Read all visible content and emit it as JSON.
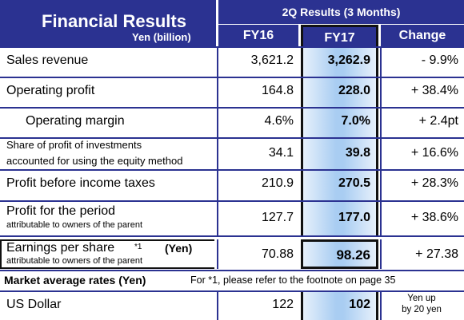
{
  "header": {
    "title": "Financial Results",
    "unit": "Yen (billion)",
    "group": "2Q Results (3 Months)",
    "col_fy16": "FY16",
    "col_fy17": "FY17",
    "col_change": "Change"
  },
  "rows": [
    {
      "label": "Sales revenue",
      "fy16": "3,621.2",
      "fy17": "3,262.9",
      "change": "- 9.9%"
    },
    {
      "label": "Operating profit",
      "fy16": "164.8",
      "fy17": "228.0",
      "change": "+ 38.4%"
    },
    {
      "label": "Operating margin",
      "fy16": "4.6%",
      "fy17": "7.0%",
      "change": "+ 2.4pt"
    },
    {
      "label_l1": "Share of profit of investments",
      "label_l2": "accounted for using the equity method",
      "fy16": "34.1",
      "fy17": "39.8",
      "change": "+ 16.6%"
    },
    {
      "label": "Profit before income taxes",
      "fy16": "210.9",
      "fy17": "270.5",
      "change": "+ 28.3%"
    },
    {
      "label_l1": "Profit for the period",
      "label_l2": "attributable to owners of the parent",
      "fy16": "127.7",
      "fy17": "177.0",
      "change": "+ 38.6%"
    }
  ],
  "eps": {
    "label": "Earnings per share",
    "footnote_mark": "*1",
    "unit": "(Yen)",
    "sub": "attributable to owners of the parent",
    "fy16": "70.88",
    "fy17": "98.26",
    "change": "+ 27.38"
  },
  "market": {
    "heading": "Market average rates (Yen)",
    "footnote": "For *1, please refer to the footnote on page 35"
  },
  "usd": {
    "label": "US Dollar",
    "fy16": "122",
    "fy17": "102",
    "change_l1": "Yen up",
    "change_l2": "by 20 yen"
  }
}
